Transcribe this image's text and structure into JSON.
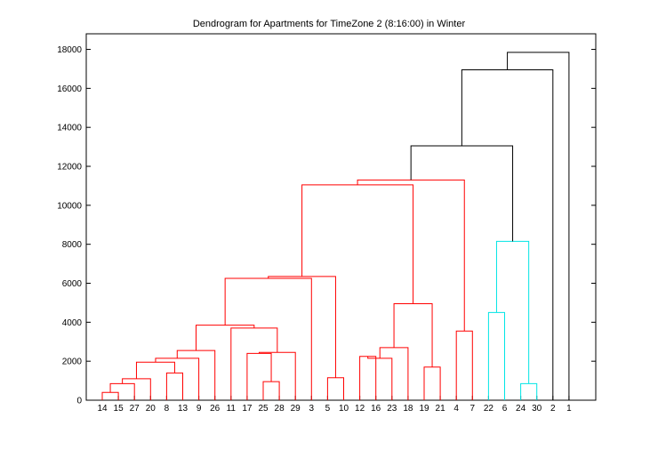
{
  "chart_data": {
    "type": "dendrogram",
    "title": "Dendrogram for Apartments for TimeZone 2 (8:16:00) in Winter",
    "xlabel": "",
    "ylabel": "",
    "ylim": [
      0,
      18800
    ],
    "yticks": [
      0,
      2000,
      4000,
      6000,
      8000,
      10000,
      12000,
      14000,
      16000,
      18000
    ],
    "ytick_labels": [
      "0",
      "2000",
      "4000",
      "6000",
      "8000",
      "10000",
      "12000",
      "14000",
      "16000",
      "18000"
    ],
    "grid": false,
    "leaf_order": [
      "14",
      "15",
      "27",
      "20",
      "8",
      "13",
      "9",
      "26",
      "11",
      "17",
      "25",
      "28",
      "29",
      "3",
      "5",
      "10",
      "12",
      "16",
      "23",
      "18",
      "19",
      "21",
      "4",
      "7",
      "22",
      "6",
      "24",
      "30",
      "2",
      "1"
    ],
    "colors": {
      "red": "#ff0000",
      "cyan": "#00e5e5",
      "black": "#000000"
    },
    "merges": [
      {
        "id": "a",
        "left": "L0",
        "right": "L1",
        "height": 400,
        "color": "red"
      },
      {
        "id": "b",
        "left": "a",
        "right": "L2",
        "height": 850,
        "color": "red"
      },
      {
        "id": "c",
        "left": "b",
        "right": "L3",
        "height": 1100,
        "color": "red"
      },
      {
        "id": "d",
        "left": "L4",
        "right": "L5",
        "height": 1400,
        "color": "red"
      },
      {
        "id": "e",
        "left": "c",
        "right": "d",
        "height": 1950,
        "color": "red"
      },
      {
        "id": "f",
        "left": "e",
        "right": "L6",
        "height": 2150,
        "color": "red"
      },
      {
        "id": "g",
        "left": "f",
        "right": "L7",
        "height": 2550,
        "color": "red"
      },
      {
        "id": "h",
        "left": "L10",
        "right": "L11",
        "height": 950,
        "color": "red"
      },
      {
        "id": "i",
        "left": "L9",
        "right": "h",
        "height": 2400,
        "color": "red"
      },
      {
        "id": "j",
        "left": "i",
        "right": "L12",
        "height": 2450,
        "color": "red"
      },
      {
        "id": "k",
        "left": "L8",
        "right": "j",
        "height": 3700,
        "color": "red"
      },
      {
        "id": "l",
        "left": "g",
        "right": "k",
        "height": 3850,
        "color": "red"
      },
      {
        "id": "m",
        "left": "l",
        "right": "L13",
        "height": 6250,
        "color": "red"
      },
      {
        "id": "n",
        "left": "L14",
        "right": "L15",
        "height": 1150,
        "color": "red"
      },
      {
        "id": "o",
        "left": "m",
        "right": "n",
        "height": 6350,
        "color": "red"
      },
      {
        "id": "p",
        "left": "L16",
        "right": "L17",
        "height": 2250,
        "color": "red"
      },
      {
        "id": "q",
        "left": "p",
        "right": "L18",
        "height": 2150,
        "color": "red"
      },
      {
        "id": "r",
        "left": "q",
        "right": "L19",
        "height": 2700,
        "color": "red"
      },
      {
        "id": "s",
        "left": "L20",
        "right": "L21",
        "height": 1700,
        "color": "red"
      },
      {
        "id": "t",
        "left": "r",
        "right": "s",
        "height": 4950,
        "color": "red"
      },
      {
        "id": "u",
        "left": "o",
        "right": "t",
        "height": 11050,
        "color": "red"
      },
      {
        "id": "v",
        "left": "L22",
        "right": "L23",
        "height": 3550,
        "color": "red"
      },
      {
        "id": "w",
        "left": "u",
        "right": "v",
        "height": 11300,
        "color": "red"
      },
      {
        "id": "x",
        "left": "L24",
        "right": "L25",
        "height": 4500,
        "color": "cyan"
      },
      {
        "id": "y",
        "left": "L26",
        "right": "L27",
        "height": 850,
        "color": "cyan"
      },
      {
        "id": "z",
        "left": "x",
        "right": "y",
        "height": 8150,
        "color": "cyan"
      },
      {
        "id": "A",
        "left": "w",
        "right": "z",
        "height": 13050,
        "color": "black"
      },
      {
        "id": "B",
        "left": "A",
        "right": "L28",
        "height": 16950,
        "color": "black"
      },
      {
        "id": "C",
        "left": "B",
        "right": "L29",
        "height": 17850,
        "color": "black"
      }
    ]
  }
}
